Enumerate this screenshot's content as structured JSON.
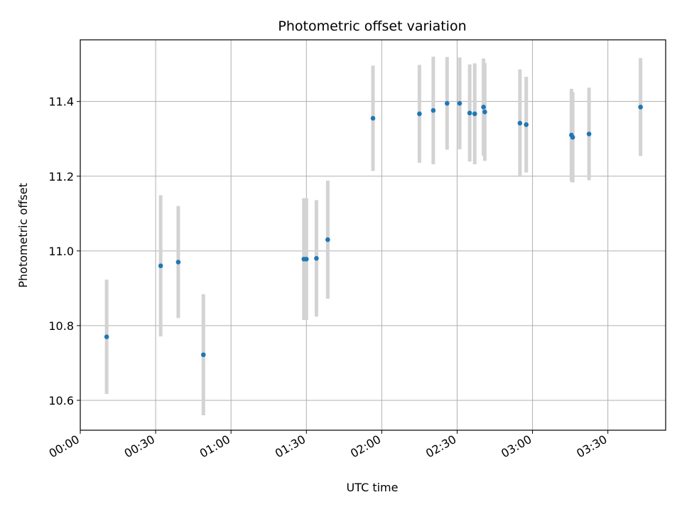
{
  "chart_data": {
    "type": "scatter",
    "title": "Photometric offset variation",
    "xlabel": "UTC time",
    "ylabel": "Photometric offset",
    "x_unit": "minutes after 00:00 UTC",
    "xlim": [
      0,
      233
    ],
    "ylim": [
      10.52,
      11.565
    ],
    "x_ticks": [
      {
        "label": "00:00",
        "value": 0
      },
      {
        "label": "00:30",
        "value": 30
      },
      {
        "label": "01:00",
        "value": 60
      },
      {
        "label": "01:30",
        "value": 90
      },
      {
        "label": "02:00",
        "value": 120
      },
      {
        "label": "02:30",
        "value": 150
      },
      {
        "label": "03:00",
        "value": 180
      },
      {
        "label": "03:30",
        "value": 210
      }
    ],
    "y_ticks": [
      {
        "label": "10.6",
        "value": 10.6
      },
      {
        "label": "10.8",
        "value": 10.8
      },
      {
        "label": "11.0",
        "value": 11.0
      },
      {
        "label": "11.2",
        "value": 11.2
      },
      {
        "label": "11.4",
        "value": 11.4
      }
    ],
    "grid": true,
    "colors": {
      "points": "#1f77b4",
      "errorbars": "#d3d3d3",
      "grid": "#b0b0b0"
    },
    "points": [
      {
        "x": 10.5,
        "y": 10.77,
        "err": 0.153
      },
      {
        "x": 32.0,
        "y": 10.96,
        "err": 0.189
      },
      {
        "x": 39.0,
        "y": 10.97,
        "err": 0.15
      },
      {
        "x": 49.0,
        "y": 10.722,
        "err": 0.162
      },
      {
        "x": 89.0,
        "y": 10.978,
        "err": 0.163
      },
      {
        "x": 90.0,
        "y": 10.978,
        "err": 0.163
      },
      {
        "x": 94.0,
        "y": 10.98,
        "err": 0.156
      },
      {
        "x": 98.5,
        "y": 11.03,
        "err": 0.158
      },
      {
        "x": 116.5,
        "y": 11.355,
        "err": 0.141
      },
      {
        "x": 135.0,
        "y": 11.367,
        "err": 0.131
      },
      {
        "x": 140.5,
        "y": 11.376,
        "err": 0.144
      },
      {
        "x": 146.0,
        "y": 11.395,
        "err": 0.124
      },
      {
        "x": 151.0,
        "y": 11.395,
        "err": 0.123
      },
      {
        "x": 155.0,
        "y": 11.369,
        "err": 0.13
      },
      {
        "x": 157.0,
        "y": 11.367,
        "err": 0.135
      },
      {
        "x": 160.5,
        "y": 11.385,
        "err": 0.13
      },
      {
        "x": 161.0,
        "y": 11.372,
        "err": 0.131
      },
      {
        "x": 175.0,
        "y": 11.342,
        "err": 0.144
      },
      {
        "x": 177.5,
        "y": 11.338,
        "err": 0.128
      },
      {
        "x": 195.5,
        "y": 11.31,
        "err": 0.124
      },
      {
        "x": 196.0,
        "y": 11.304,
        "err": 0.121
      },
      {
        "x": 202.5,
        "y": 11.313,
        "err": 0.124
      },
      {
        "x": 223.0,
        "y": 11.385,
        "err": 0.131
      }
    ]
  }
}
